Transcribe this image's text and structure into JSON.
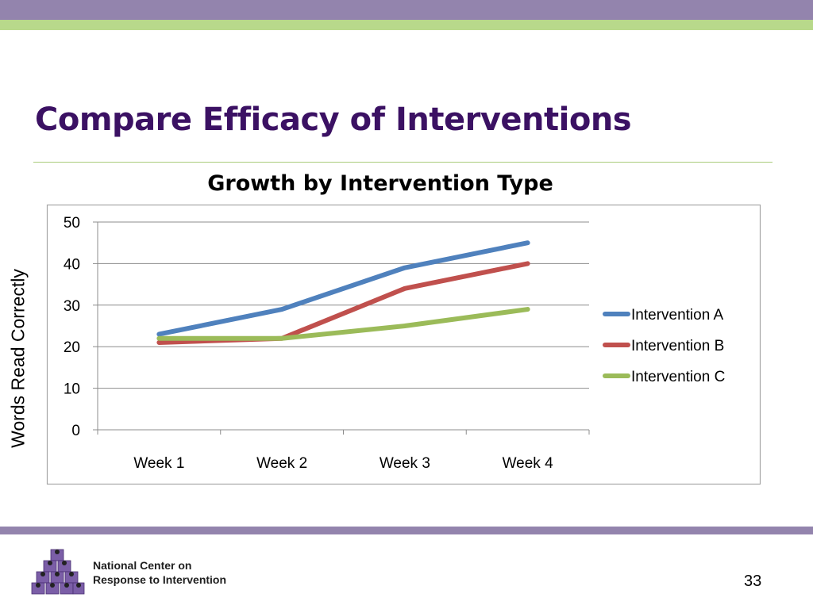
{
  "slide": {
    "title": "Compare Efficacy of Interventions",
    "organization_line1": "National Center on",
    "organization_line2": "Response to Intervention",
    "page_number": "33"
  },
  "colors": {
    "title": "#3b1163",
    "band_purple": "#9384ad",
    "band_green": "#b8d98b"
  },
  "chart_data": {
    "type": "line",
    "title": "Growth by Intervention Type",
    "xlabel": "",
    "ylabel": "Words Read Correctly",
    "categories": [
      "Week 1",
      "Week 2",
      "Week 3",
      "Week 4"
    ],
    "ylim": [
      0,
      50
    ],
    "yticks": [
      0,
      10,
      20,
      30,
      40,
      50
    ],
    "grid": true,
    "legend_position": "right",
    "series": [
      {
        "name": "Intervention A",
        "color": "#4f81bd",
        "values": [
          23,
          29,
          39,
          45
        ]
      },
      {
        "name": "Intervention B",
        "color": "#c0504d",
        "values": [
          21,
          22,
          34,
          40
        ]
      },
      {
        "name": "Intervention C",
        "color": "#9bbb59",
        "values": [
          22,
          22,
          25,
          29
        ]
      }
    ]
  }
}
